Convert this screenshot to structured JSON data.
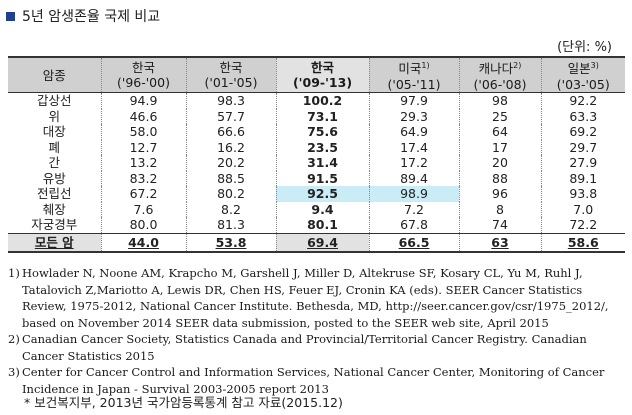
{
  "title": "5년 암생존율 국제 비교",
  "unit": "(단위: %)",
  "columns": [
    {
      "top": "암종",
      "bottom": ""
    },
    {
      "top": "한국",
      "bottom": "('96-'00)"
    },
    {
      "top": "한국",
      "bottom": "('01-'05)"
    },
    {
      "top": "한국",
      "bottom": "('09-'13)"
    },
    {
      "top": "미국",
      "sup": "1)",
      "bottom": "('05-'11)"
    },
    {
      "top": "캐나다",
      "sup": "2)",
      "bottom": "('06-'08)"
    },
    {
      "top": "일본",
      "sup": "3)",
      "bottom": "('03-'05)"
    }
  ],
  "rows": [
    [
      "갑상선",
      "94.9",
      "98.3",
      "100.2",
      "97.9",
      "98",
      "92.2"
    ],
    [
      "위",
      "46.6",
      "57.7",
      "73.1",
      "29.3",
      "25",
      "63.3"
    ],
    [
      "대장",
      "58.0",
      "66.6",
      "75.6",
      "64.9",
      "64",
      "69.2"
    ],
    [
      "폐",
      "12.7",
      "16.2",
      "23.5",
      "17.4",
      "17",
      "29.7"
    ],
    [
      "간",
      "13.2",
      "20.2",
      "31.4",
      "17.2",
      "20",
      "27.9"
    ],
    [
      "유방",
      "83.2",
      "88.5",
      "91.5",
      "89.4",
      "88",
      "89.1"
    ],
    [
      "전립선",
      "67.2",
      "80.2",
      "92.5",
      "98.9",
      "96",
      "93.8"
    ],
    [
      "췌장",
      "7.6",
      "8.2",
      "9.4",
      "7.2",
      "8",
      "7.0"
    ],
    [
      "자궁경부",
      "80.0",
      "81.3",
      "80.1",
      "67.8",
      "74",
      "72.2"
    ]
  ],
  "total": [
    "모든 암",
    "44.0",
    "53.8",
    "69.4",
    "66.5",
    "63",
    "58.6"
  ],
  "notes": [
    {
      "num": "1)",
      "text": "Howlader N, Noone AM, Krapcho M, Garshell J, Miller D, Altekruse SF, Kosary CL, Yu M, Ruhl J, Tatalovich Z,Mariotto A, Lewis DR, Chen HS, Feuer EJ, Cronin KA (eds). SEER Cancer Statistics Review, 1975-2012, National Cancer Institute. Bethesda, MD, http://seer.cancer.gov/csr/1975_2012/, based on November 2014 SEER data submission, posted to the SEER web site, April 2015"
    },
    {
      "num": "2)",
      "text": "Canadian Cancer Society, Statistics Canada and Provincial/Territorial Cancer Registry. Canadian Cancer Statistics 2015"
    },
    {
      "num": "3)",
      "text": "Center for Cancer Control and Information Services, National Cancer Center, Monitoring of Cancer Incidence in Japan - Survival 2003-2005 report 2013"
    }
  ],
  "source": "* 보건복지부, 2013년 국가암등록통계 참고 자료(2015.12)",
  "colors": {
    "bullet": "#1f3f8f",
    "header_bg": "#d0d0d0",
    "highlight_cell": "#c9ecf6"
  }
}
